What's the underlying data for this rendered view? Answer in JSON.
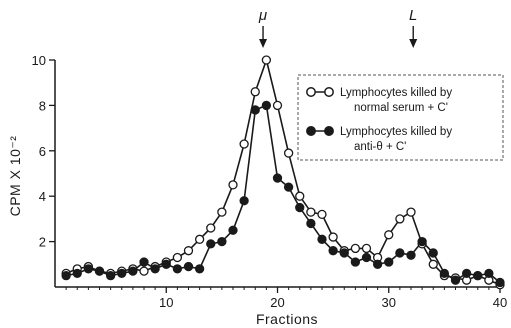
{
  "chart_data": {
    "type": "line",
    "xlabel": "Fractions",
    "ylabel": "CPM  X 10⁻²",
    "xlim": [
      0,
      40
    ],
    "ylim": [
      0,
      10
    ],
    "x_ticks": [
      10,
      20,
      30,
      40
    ],
    "y_ticks": [
      2,
      4,
      6,
      8,
      10
    ],
    "grid": false,
    "legend_position": "top-right",
    "markers": [
      {
        "label": "μ",
        "x": 18.7
      },
      {
        "label": "L",
        "x": 32.2
      }
    ],
    "series": [
      {
        "name": "Lymphocytes killed by normal serum + C'",
        "marker": "open-circle",
        "x": [
          1,
          2,
          3,
          4,
          5,
          6,
          7,
          8,
          9,
          10,
          11,
          12,
          13,
          14,
          15,
          16,
          17,
          18,
          19,
          20,
          21,
          22,
          23,
          24,
          25,
          26,
          27,
          28,
          29,
          30,
          31,
          32,
          33,
          34,
          35,
          36,
          37,
          38,
          39,
          40
        ],
        "values": [
          0.6,
          0.8,
          0.9,
          0.7,
          0.6,
          0.7,
          0.8,
          0.7,
          0.9,
          1.1,
          1.3,
          1.6,
          2.1,
          2.6,
          3.3,
          4.5,
          6.3,
          8.6,
          10.0,
          8.0,
          5.9,
          4.0,
          3.3,
          3.2,
          2.2,
          1.6,
          1.7,
          1.7,
          1.3,
          2.3,
          3.0,
          3.3,
          1.9,
          1.0,
          0.5,
          0.4,
          0.3,
          0.5,
          0.3,
          0.1
        ]
      },
      {
        "name": "Lymphocytes killed by anti-θ + C'",
        "marker": "filled-circle",
        "x": [
          1,
          2,
          3,
          4,
          5,
          6,
          7,
          8,
          9,
          10,
          11,
          12,
          13,
          14,
          15,
          16,
          17,
          18,
          19,
          20,
          21,
          22,
          23,
          24,
          25,
          26,
          27,
          28,
          29,
          30,
          31,
          32,
          33,
          34,
          35,
          36,
          37,
          38,
          39,
          40
        ],
        "values": [
          0.5,
          0.6,
          0.8,
          0.7,
          0.5,
          0.6,
          0.7,
          1.1,
          0.8,
          1.0,
          0.8,
          0.9,
          0.8,
          1.9,
          2.0,
          2.5,
          3.8,
          7.8,
          8.0,
          4.8,
          4.4,
          3.5,
          2.8,
          2.1,
          1.6,
          1.5,
          1.1,
          1.3,
          1.0,
          1.1,
          1.5,
          1.4,
          2.0,
          1.5,
          0.6,
          0.3,
          0.6,
          0.5,
          0.6,
          0.2
        ]
      }
    ],
    "legend": {
      "entries": [
        {
          "line1": "Lymphocytes  killed  by",
          "line2": "normal serum + C'",
          "marker": "open-circle"
        },
        {
          "line1": "Lymphocytes  killed  by",
          "line2": "anti-θ + C'",
          "marker": "filled-circle"
        }
      ]
    }
  }
}
